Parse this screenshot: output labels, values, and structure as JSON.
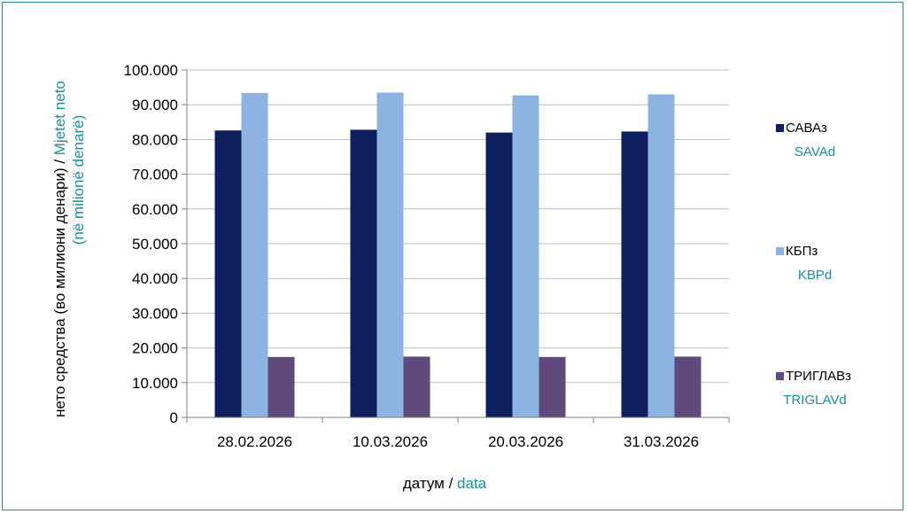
{
  "chart_data": {
    "type": "bar",
    "categories": [
      "28.02.2026",
      "10.03.2026",
      "20.03.2026",
      "31.03.2026"
    ],
    "series": [
      {
        "name": "САВАз",
        "name_al": "SAVAd",
        "color": "#0d1f5c",
        "values": [
          82600,
          82800,
          82000,
          82300
        ]
      },
      {
        "name": "КБПз",
        "name_al": "KBPd",
        "color": "#8db3e2",
        "values": [
          93400,
          93500,
          92700,
          93000
        ]
      },
      {
        "name": "ТРИГЛАВз",
        "name_al": "TRIGLAVd",
        "color": "#604a7b",
        "values": [
          17400,
          17500,
          17400,
          17500
        ]
      }
    ],
    "ylim": [
      0,
      100000
    ],
    "yticks": [
      "0",
      "10.000",
      "20.000",
      "30.000",
      "40.000",
      "50.000",
      "60.000",
      "70.000",
      "80.000",
      "90.000",
      "100.000"
    ],
    "ylabel_ru": "нето средства (во милиони денари) / ",
    "ylabel_al": "Mjetet neto (në milionë denarë)",
    "xlabel_ru": "датум  / ",
    "xlabel_al": "data",
    "grid": true,
    "legend_position": "right"
  },
  "colors": {
    "frame": "#2e8a8a",
    "albanian_text": "#1a8fa0",
    "grid": "#bfbfbf"
  }
}
